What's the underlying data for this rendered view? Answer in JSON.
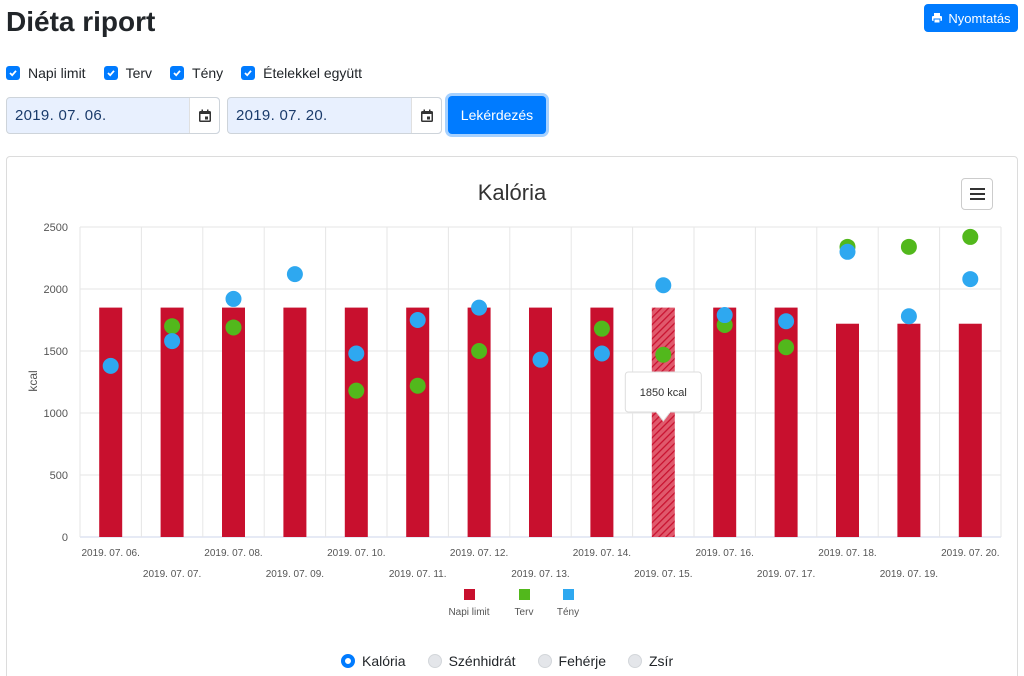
{
  "page": {
    "title": "Diéta riport",
    "print_label": "Nyomtatás"
  },
  "filters": {
    "checkboxes": [
      {
        "label": "Napi limit",
        "checked": true
      },
      {
        "label": "Terv",
        "checked": true
      },
      {
        "label": "Tény",
        "checked": true
      },
      {
        "label": "Ételekkel együtt",
        "checked": true
      }
    ],
    "date_from": "2019. 07. 06.",
    "date_to": "2019. 07. 20.",
    "query_label": "Lekérdezés"
  },
  "chart_data": {
    "type": "bar",
    "title": "Kalória",
    "xlabel": "",
    "ylabel": "kcal",
    "ylim": [
      0,
      2500
    ],
    "yticks": [
      0,
      500,
      1000,
      1500,
      2000,
      2500
    ],
    "grid": true,
    "legend_position": "bottom",
    "categories": [
      "2019. 07. 06.",
      "2019. 07. 07.",
      "2019. 07. 08.",
      "2019. 07. 09.",
      "2019. 07. 10.",
      "2019. 07. 11.",
      "2019. 07. 12.",
      "2019. 07. 13.",
      "2019. 07. 14.",
      "2019. 07. 15.",
      "2019. 07. 16.",
      "2019. 07. 17.",
      "2019. 07. 18.",
      "2019. 07. 19.",
      "2019. 07. 20."
    ],
    "series": [
      {
        "name": "Napi limit",
        "kind": "bar",
        "color": "#c8102e",
        "values": [
          1850,
          1850,
          1850,
          1850,
          1850,
          1850,
          1850,
          1850,
          1850,
          1850,
          1850,
          1850,
          1720,
          1720,
          1720
        ]
      },
      {
        "name": "Terv",
        "kind": "scatter",
        "color": "#52b81c",
        "values": [
          null,
          1700,
          1690,
          null,
          1180,
          1220,
          1500,
          null,
          1680,
          1470,
          1710,
          1530,
          2340,
          2340,
          2420
        ]
      },
      {
        "name": "Tény",
        "kind": "scatter",
        "color": "#2ea8f0",
        "values": [
          1380,
          1580,
          1920,
          2120,
          1480,
          1750,
          1850,
          1430,
          1480,
          2030,
          1790,
          1740,
          2300,
          1780,
          2080
        ]
      }
    ],
    "highlight_index": 9,
    "tooltip": "1850 kcal"
  },
  "nutrient_options": [
    {
      "label": "Kalória",
      "selected": true
    },
    {
      "label": "Szénhidrát",
      "selected": false
    },
    {
      "label": "Fehérje",
      "selected": false
    },
    {
      "label": "Zsír",
      "selected": false
    }
  ]
}
